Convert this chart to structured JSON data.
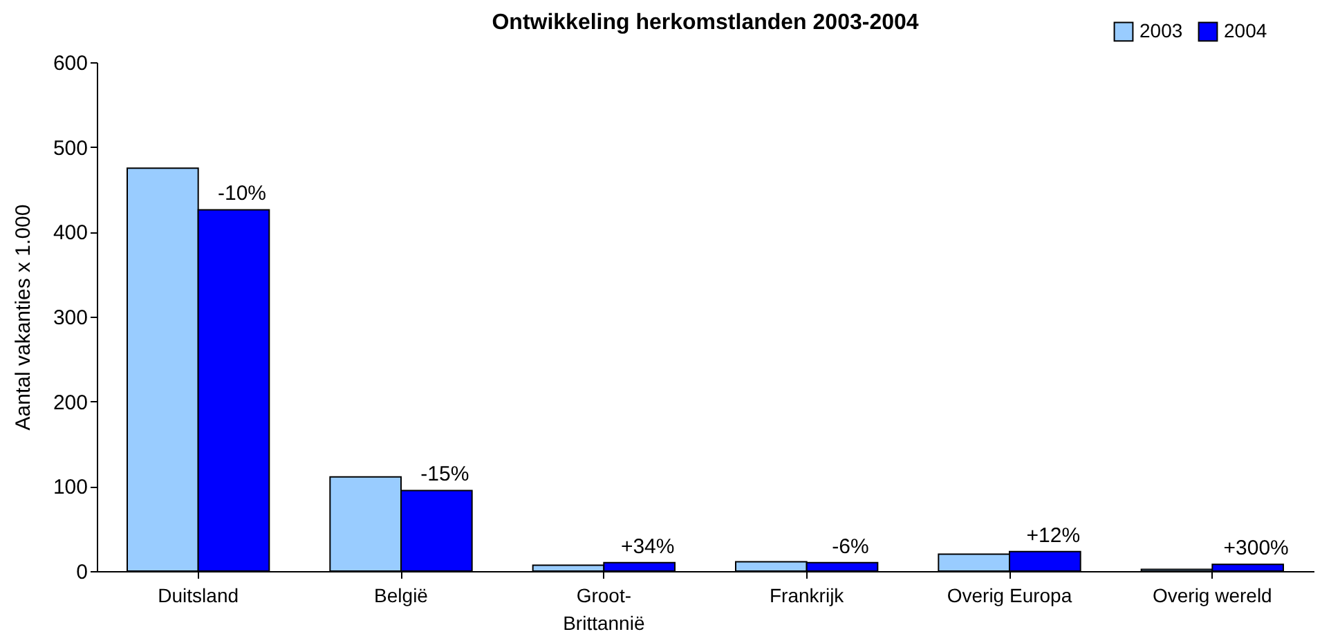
{
  "chart_data": {
    "type": "bar",
    "title": "Ontwikkeling herkomstlanden 2003-2004",
    "ylabel": "Aantal vakanties x 1.000",
    "categories": [
      "Duitsland",
      "België",
      "Groot-Brittannië",
      "Frankrijk",
      "Overig Europa",
      "Overig wereld"
    ],
    "series": [
      {
        "name": "2003",
        "color": "#99ccff",
        "values": [
          475,
          111,
          7,
          11,
          20,
          2
        ]
      },
      {
        "name": "2004",
        "color": "#0000ff",
        "values": [
          426,
          95,
          10,
          10,
          23,
          8
        ]
      }
    ],
    "ylim": [
      0,
      600
    ],
    "yticks": [
      0,
      100,
      200,
      300,
      400,
      500,
      600
    ],
    "grid": false,
    "legend": "top right",
    "annotations": [
      {
        "text": "-10%",
        "x": "Duitsland",
        "y": 426
      },
      {
        "text": "-15%",
        "x": "België",
        "y": 95
      },
      {
        "text": "+34%",
        "x": "Groot-Brittannië",
        "y": 10
      },
      {
        "text": "-6%",
        "x": "Frankrijk",
        "y": 10
      },
      {
        "text": "+12%",
        "x": "Overig Europa",
        "y": 23
      },
      {
        "text": "+300%",
        "x": "Overig wereld",
        "y": 8
      }
    ]
  }
}
